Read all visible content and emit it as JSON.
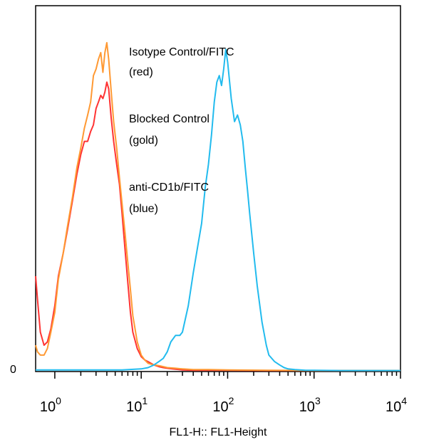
{
  "chart_data": {
    "type": "line",
    "title": "",
    "xlabel": "FL1-H:: FL1-Height",
    "ylabel": "",
    "x_scale": "log",
    "xlim": [
      0.6,
      10000
    ],
    "ylim": [
      0,
      1.0
    ],
    "grid": false,
    "x_ticks": [
      {
        "value": 1,
        "base": "10",
        "exp": "0"
      },
      {
        "value": 10,
        "base": "10",
        "exp": "1"
      },
      {
        "value": 100,
        "base": "10",
        "exp": "2"
      },
      {
        "value": 1000,
        "base": "10",
        "exp": "3"
      },
      {
        "value": 10000,
        "base": "10",
        "exp": "4"
      }
    ],
    "y_ticks": [
      {
        "value": 0,
        "label": "0"
      }
    ],
    "legend": {
      "placement": "top-center",
      "lines": [
        "Isotype Control/FITC",
        "(red)",
        "Blocked Control",
        "(gold)",
        "anti-CD1b/FITC",
        "(blue)"
      ]
    },
    "series": [
      {
        "name": "Isotype Control/FITC",
        "color": "#ff3333",
        "x": [
          0.6,
          0.63,
          0.68,
          0.75,
          0.82,
          0.9,
          1.0,
          1.1,
          1.25,
          1.4,
          1.6,
          1.8,
          2.0,
          2.2,
          2.4,
          2.6,
          2.8,
          3.0,
          3.2,
          3.4,
          3.6,
          3.8,
          4.0,
          4.2,
          4.5,
          4.8,
          5.2,
          5.6,
          6.0,
          6.5,
          7.0,
          7.5,
          8,
          9,
          10,
          11,
          12,
          14,
          16,
          18,
          20,
          25,
          30,
          40,
          60,
          100,
          300,
          1000,
          10000
        ],
        "y": [
          0.29,
          0.22,
          0.12,
          0.08,
          0.09,
          0.13,
          0.2,
          0.29,
          0.36,
          0.43,
          0.52,
          0.6,
          0.66,
          0.7,
          0.7,
          0.73,
          0.75,
          0.8,
          0.82,
          0.84,
          0.83,
          0.85,
          0.88,
          0.86,
          0.77,
          0.7,
          0.63,
          0.57,
          0.48,
          0.37,
          0.27,
          0.18,
          0.12,
          0.07,
          0.045,
          0.035,
          0.03,
          0.02,
          0.015,
          0.012,
          0.01,
          0.007,
          0.005,
          0.004,
          0.004,
          0.004,
          0.003,
          0.003,
          0.003
        ]
      },
      {
        "name": "Blocked Control",
        "color": "#ff9933",
        "x": [
          0.6,
          0.63,
          0.68,
          0.75,
          0.82,
          0.9,
          1.0,
          1.1,
          1.25,
          1.4,
          1.6,
          1.8,
          2.0,
          2.2,
          2.4,
          2.6,
          2.8,
          3.0,
          3.2,
          3.4,
          3.6,
          3.8,
          4.0,
          4.2,
          4.5,
          4.8,
          5.2,
          5.6,
          6.0,
          6.5,
          7.0,
          7.5,
          8,
          9,
          10,
          11,
          12,
          14,
          16,
          18,
          20,
          25,
          30,
          40,
          60,
          100,
          300,
          1000,
          10000
        ],
        "y": [
          0.08,
          0.06,
          0.05,
          0.05,
          0.07,
          0.12,
          0.18,
          0.28,
          0.36,
          0.44,
          0.53,
          0.62,
          0.68,
          0.74,
          0.78,
          0.82,
          0.9,
          0.92,
          0.95,
          0.97,
          0.91,
          0.97,
          1.0,
          0.95,
          0.85,
          0.76,
          0.68,
          0.59,
          0.51,
          0.42,
          0.33,
          0.25,
          0.17,
          0.09,
          0.05,
          0.035,
          0.025,
          0.02,
          0.018,
          0.015,
          0.012,
          0.01,
          0.008,
          0.006,
          0.006,
          0.005,
          0.004,
          0.003,
          0.003
        ]
      },
      {
        "name": "anti-CD1b/FITC",
        "color": "#22bbee",
        "x": [
          0.6,
          1.0,
          3,
          6,
          10,
          12,
          14,
          16,
          18,
          20,
          22,
          25,
          28,
          30,
          35,
          40,
          45,
          50,
          55,
          60,
          65,
          70,
          75,
          80,
          85,
          90,
          95,
          100,
          110,
          120,
          130,
          140,
          150,
          160,
          170,
          180,
          200,
          220,
          250,
          280,
          300,
          350,
          400,
          450,
          500,
          600,
          800,
          1000,
          2000,
          10000
        ],
        "y": [
          0.005,
          0.005,
          0.005,
          0.005,
          0.008,
          0.012,
          0.02,
          0.03,
          0.04,
          0.06,
          0.09,
          0.11,
          0.11,
          0.12,
          0.2,
          0.3,
          0.38,
          0.45,
          0.56,
          0.63,
          0.72,
          0.82,
          0.88,
          0.9,
          0.87,
          0.92,
          0.98,
          0.94,
          0.83,
          0.76,
          0.78,
          0.75,
          0.7,
          0.62,
          0.55,
          0.48,
          0.36,
          0.26,
          0.15,
          0.08,
          0.05,
          0.03,
          0.02,
          0.012,
          0.008,
          0.006,
          0.004,
          0.004,
          0.003,
          0.003
        ]
      }
    ]
  }
}
